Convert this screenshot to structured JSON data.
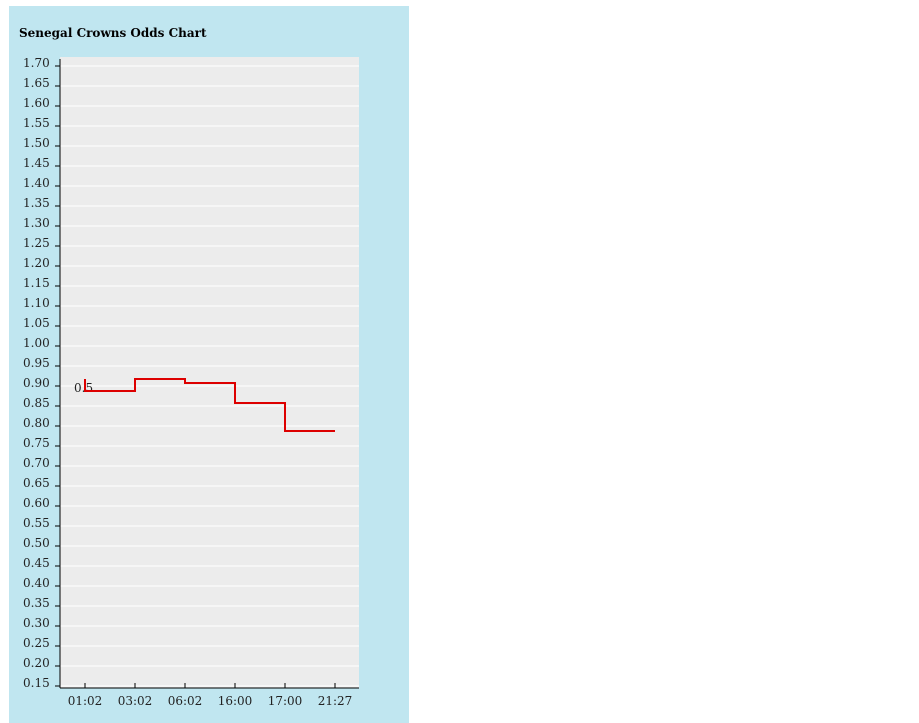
{
  "title": "Senegal Crowns Odds Chart",
  "chart_data": {
    "type": "line",
    "step": true,
    "title": "Senegal Crowns Odds Chart",
    "xlabel": "",
    "ylabel": "",
    "categories": [
      "01:02",
      "03:02",
      "06:02",
      "16:00",
      "17:00",
      "21:27"
    ],
    "series": [
      {
        "values": [
          0.88,
          0.91,
          0.9,
          0.85,
          0.78,
          0.78
        ]
      }
    ],
    "yticks": [
      "0.15",
      "0.20",
      "0.25",
      "0.30",
      "0.35",
      "0.40",
      "0.45",
      "0.50",
      "0.55",
      "0.60",
      "0.65",
      "0.70",
      "0.75",
      "0.80",
      "0.85",
      "0.90",
      "0.95",
      "1.00",
      "1.05",
      "1.10",
      "1.15",
      "1.20",
      "1.25",
      "1.30",
      "1.35",
      "1.40",
      "1.45",
      "1.50",
      "1.55",
      "1.60",
      "1.65",
      "1.70"
    ],
    "ylim": [
      0.15,
      1.7
    ],
    "grid": true,
    "start_label": "0.5",
    "colors": {
      "panel": "#c0e6f0",
      "plot_bg": "#ececec",
      "grid": "#ffffff",
      "line": "#dd0000"
    }
  }
}
